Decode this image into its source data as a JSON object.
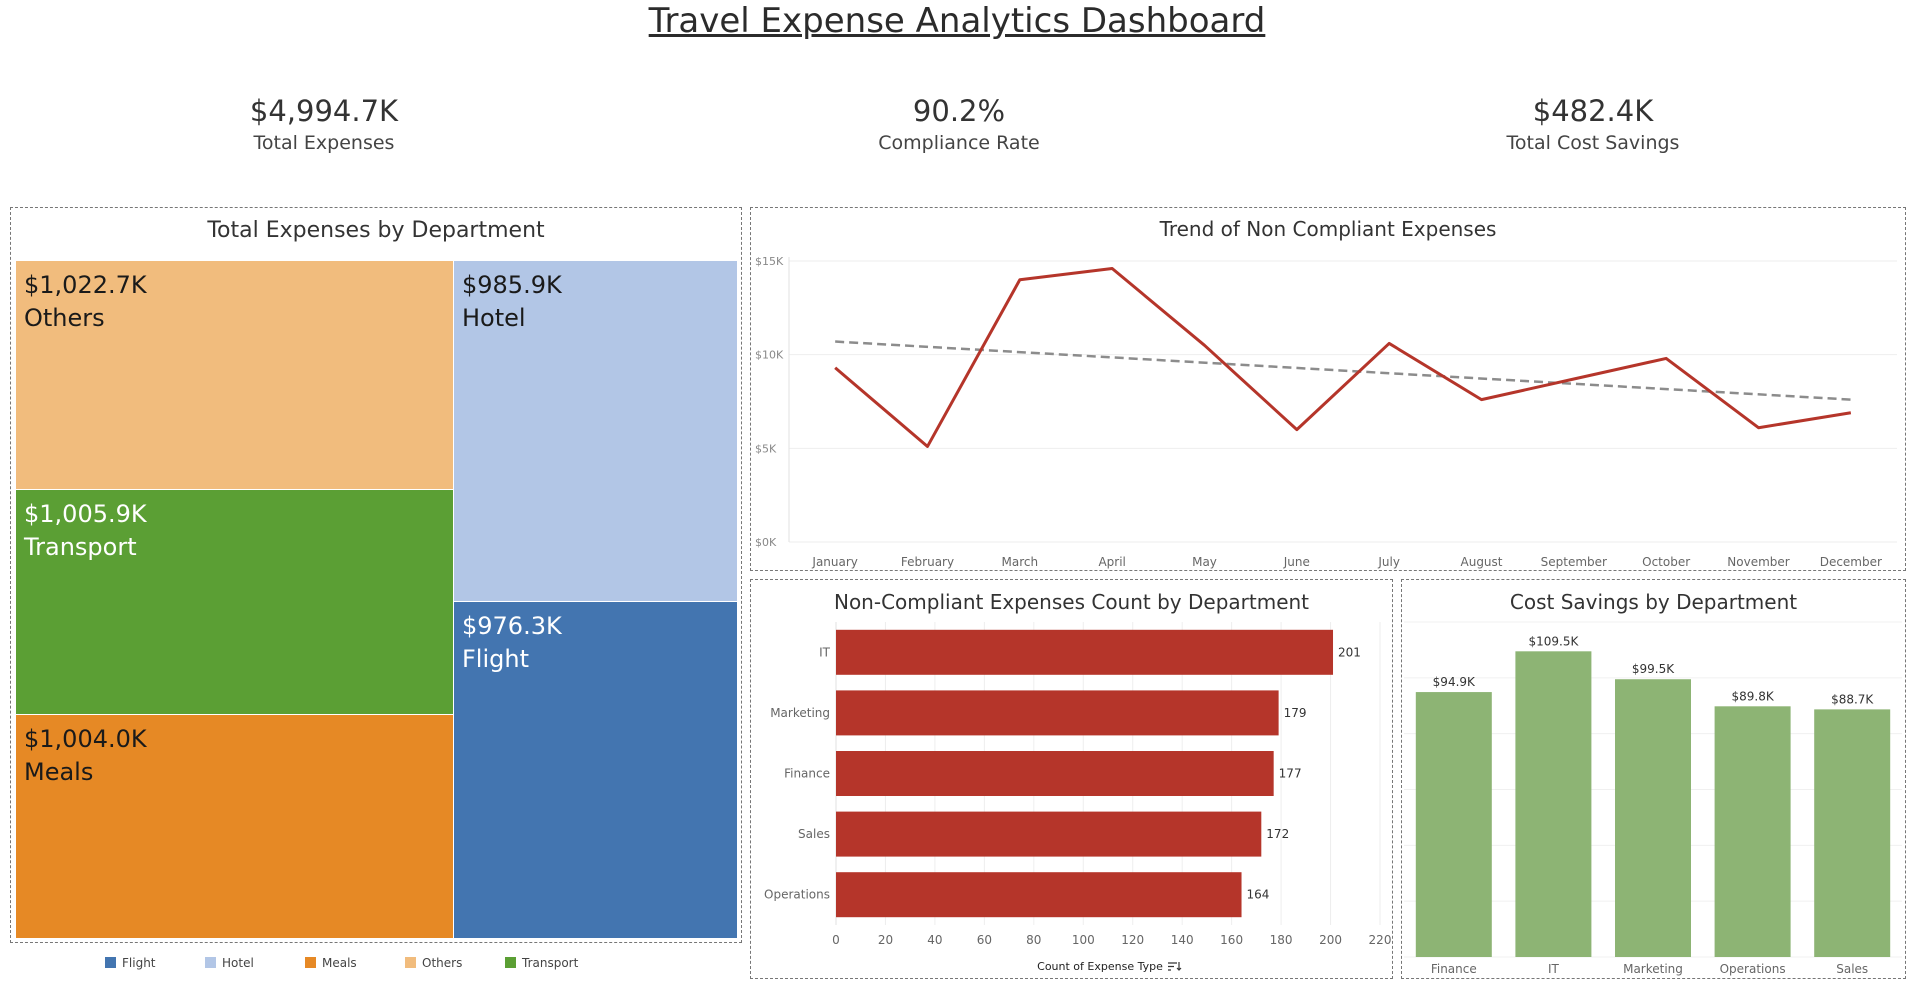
{
  "title": "Travel Expense Analytics Dashboard",
  "kpis": [
    {
      "value": "$4,994.7K",
      "label": "Total Expenses"
    },
    {
      "value": "90.2%",
      "label": "Compliance Rate"
    },
    {
      "value": "$482.4K",
      "label": "Total Cost Savings"
    }
  ],
  "colors": {
    "flight": "#4375b0",
    "hotel": "#b2c6e6",
    "meals": "#e68925",
    "others": "#f1bc7d",
    "transport": "#5b9f34",
    "red": "#b5352a",
    "green": "#8db474",
    "trend": "#8c8c8c"
  },
  "chart_data": [
    {
      "type": "treemap",
      "title": "Total Expenses by Department",
      "items": [
        {
          "name": "Others",
          "value": 1022.7,
          "label": "$1,022.7K",
          "color": "#f1bc7d",
          "text_color": "#1a1a1a"
        },
        {
          "name": "Transport",
          "value": 1005.9,
          "label": "$1,005.9K",
          "color": "#5b9f34",
          "text_color": "#ffffff"
        },
        {
          "name": "Meals",
          "value": 1004.0,
          "label": "$1,004.0K",
          "color": "#e68925",
          "text_color": "#1a1a1a"
        },
        {
          "name": "Hotel",
          "value": 985.9,
          "label": "$985.9K",
          "color": "#b2c6e6",
          "text_color": "#1a1a1a"
        },
        {
          "name": "Flight",
          "value": 976.3,
          "label": "$976.3K",
          "color": "#4375b0",
          "text_color": "#ffffff"
        }
      ],
      "legend": [
        "Flight",
        "Hotel",
        "Meals",
        "Others",
        "Transport"
      ]
    },
    {
      "type": "line",
      "title": "Trend of Non Compliant Expenses",
      "categories": [
        "January",
        "February",
        "March",
        "April",
        "May",
        "June",
        "July",
        "August",
        "September",
        "October",
        "November",
        "December"
      ],
      "values": [
        9300,
        5100,
        14000,
        14600,
        10500,
        6000,
        10600,
        7600,
        8700,
        9800,
        6100,
        6900
      ],
      "trend_line": [
        10700,
        7600
      ],
      "ylim": [
        0,
        15000
      ],
      "yticks": [
        0,
        5000,
        10000,
        15000
      ],
      "ytick_labels": [
        "$0K",
        "$5K",
        "$10K",
        "$15K"
      ],
      "grid": true
    },
    {
      "type": "bar",
      "orientation": "horizontal",
      "title": "Non-Compliant Expenses Count by Department",
      "categories": [
        "IT",
        "Marketing",
        "Finance",
        "Sales",
        "Operations"
      ],
      "values": [
        201,
        179,
        177,
        172,
        164
      ],
      "xlabel": "Count of Expense Type",
      "xlim": [
        0,
        220
      ],
      "xticks": [
        0,
        20,
        40,
        60,
        80,
        100,
        120,
        140,
        160,
        180,
        200,
        220
      ],
      "grid": true
    },
    {
      "type": "bar",
      "title": "Cost Savings by Department",
      "categories": [
        "Finance",
        "IT",
        "Marketing",
        "Operations",
        "Sales"
      ],
      "values": [
        94.9,
        109.5,
        99.5,
        89.8,
        88.7
      ],
      "labels": [
        "$94.9K",
        "$109.5K",
        "$99.5K",
        "$89.8K",
        "$88.7K"
      ],
      "ylim": [
        0,
        120
      ],
      "grid": true
    }
  ]
}
